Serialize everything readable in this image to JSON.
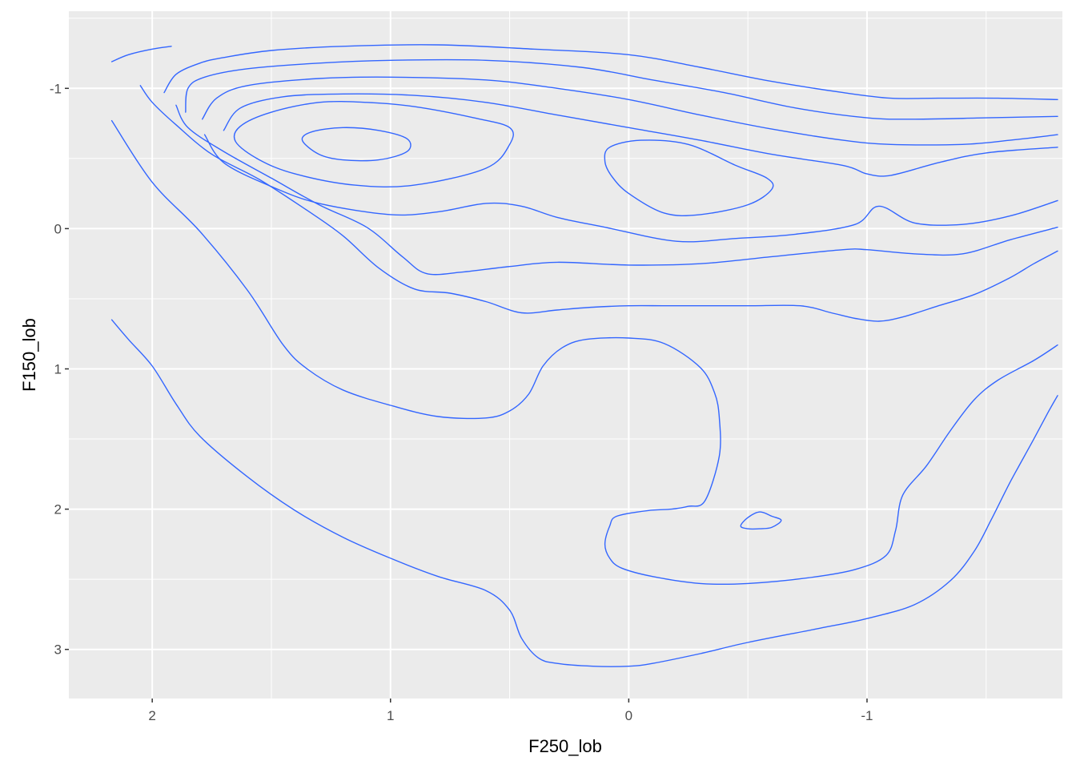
{
  "chart_data": {
    "type": "line",
    "subtype": "2d-density-contour",
    "title": "",
    "xlabel": "F250_lob",
    "ylabel": "F150_lob",
    "x_reversed": true,
    "y_reversed": true,
    "xlim": [
      2.35,
      -1.82
    ],
    "ylim": [
      -1.55,
      3.35
    ],
    "x_ticks": [
      2,
      1,
      0,
      -1
    ],
    "x_tick_labels": [
      "2",
      "1",
      "0",
      "-1"
    ],
    "y_ticks": [
      -1,
      0,
      1,
      2,
      3
    ],
    "y_tick_labels": [
      "-1",
      "0",
      "1",
      "2",
      "3"
    ],
    "grid": true,
    "legend": "none",
    "colors": {
      "panel_background": "#EBEBEB",
      "grid": "#FFFFFF",
      "contour": "#3366FF",
      "page_background": "#FFFFFF"
    },
    "series": [
      {
        "closed": false,
        "points": [
          [
            2.17,
            -1.19
          ],
          [
            2.1,
            -1.24
          ],
          [
            2.0,
            -1.28
          ],
          [
            1.92,
            -1.3
          ]
        ]
      },
      {
        "closed": false,
        "points": [
          [
            2.17,
            0.65
          ],
          [
            2.1,
            0.79
          ],
          [
            2.0,
            0.98
          ],
          [
            1.9,
            1.25
          ],
          [
            1.8,
            1.48
          ],
          [
            1.6,
            1.77
          ],
          [
            1.4,
            2.01
          ],
          [
            1.2,
            2.2
          ],
          [
            1.0,
            2.35
          ],
          [
            0.8,
            2.48
          ],
          [
            0.6,
            2.58
          ],
          [
            0.5,
            2.72
          ],
          [
            0.45,
            2.92
          ],
          [
            0.38,
            3.06
          ],
          [
            0.3,
            3.1
          ],
          [
            0.15,
            3.12
          ],
          [
            0.0,
            3.12
          ],
          [
            -0.1,
            3.1
          ],
          [
            -0.3,
            3.03
          ],
          [
            -0.5,
            2.95
          ],
          [
            -0.8,
            2.85
          ],
          [
            -1.0,
            2.78
          ],
          [
            -1.2,
            2.68
          ],
          [
            -1.35,
            2.51
          ],
          [
            -1.45,
            2.3
          ],
          [
            -1.52,
            2.08
          ],
          [
            -1.6,
            1.81
          ],
          [
            -1.7,
            1.5
          ],
          [
            -1.76,
            1.31
          ],
          [
            -1.8,
            1.19
          ]
        ]
      },
      {
        "closed": false,
        "points": [
          [
            2.17,
            -0.77
          ],
          [
            2.0,
            -0.33
          ],
          [
            1.8,
            0.02
          ],
          [
            1.6,
            0.44
          ],
          [
            1.45,
            0.83
          ],
          [
            1.35,
            1.0
          ],
          [
            1.2,
            1.15
          ],
          [
            1.0,
            1.26
          ],
          [
            0.8,
            1.34
          ],
          [
            0.6,
            1.35
          ],
          [
            0.5,
            1.3
          ],
          [
            0.42,
            1.18
          ],
          [
            0.36,
            0.98
          ],
          [
            0.28,
            0.85
          ],
          [
            0.18,
            0.79
          ],
          [
            0.0,
            0.78
          ],
          [
            -0.15,
            0.82
          ],
          [
            -0.3,
            0.99
          ],
          [
            -0.36,
            1.17
          ],
          [
            -0.38,
            1.35
          ],
          [
            -0.38,
            1.62
          ],
          [
            -0.32,
            1.94
          ],
          [
            -0.25,
            1.98
          ],
          [
            -0.18,
            2.0
          ],
          [
            -0.08,
            2.01
          ],
          [
            0.05,
            2.05
          ],
          [
            0.08,
            2.12
          ],
          [
            0.1,
            2.25
          ],
          [
            0.08,
            2.35
          ],
          [
            0.03,
            2.42
          ],
          [
            -0.1,
            2.48
          ],
          [
            -0.3,
            2.53
          ],
          [
            -0.5,
            2.53
          ],
          [
            -0.75,
            2.49
          ],
          [
            -0.95,
            2.43
          ],
          [
            -1.08,
            2.33
          ],
          [
            -1.12,
            2.15
          ],
          [
            -1.15,
            1.9
          ],
          [
            -1.25,
            1.69
          ],
          [
            -1.35,
            1.44
          ],
          [
            -1.45,
            1.22
          ],
          [
            -1.55,
            1.08
          ],
          [
            -1.7,
            0.94
          ],
          [
            -1.8,
            0.83
          ]
        ]
      },
      {
        "closed": false,
        "points": [
          [
            2.05,
            -1.02
          ],
          [
            2.0,
            -0.9
          ],
          [
            1.9,
            -0.74
          ],
          [
            1.75,
            -0.53
          ],
          [
            1.55,
            -0.35
          ],
          [
            1.35,
            -0.13
          ],
          [
            1.2,
            0.05
          ],
          [
            1.05,
            0.28
          ],
          [
            0.9,
            0.43
          ],
          [
            0.75,
            0.46
          ],
          [
            0.6,
            0.52
          ],
          [
            0.45,
            0.6
          ],
          [
            0.3,
            0.58
          ],
          [
            0.15,
            0.56
          ],
          [
            0.0,
            0.55
          ],
          [
            -0.15,
            0.55
          ],
          [
            -0.3,
            0.55
          ],
          [
            -0.5,
            0.55
          ],
          [
            -0.72,
            0.55
          ],
          [
            -0.85,
            0.6
          ],
          [
            -0.95,
            0.64
          ],
          [
            -1.05,
            0.66
          ],
          [
            -1.15,
            0.63
          ],
          [
            -1.3,
            0.55
          ],
          [
            -1.45,
            0.47
          ],
          [
            -1.6,
            0.35
          ],
          [
            -1.7,
            0.25
          ],
          [
            -1.8,
            0.16
          ]
        ]
      },
      {
        "closed": false,
        "points": [
          [
            1.95,
            -0.97
          ],
          [
            1.9,
            -1.1
          ],
          [
            1.8,
            -1.18
          ],
          [
            1.7,
            -1.22
          ],
          [
            1.5,
            -1.27
          ],
          [
            1.2,
            -1.3
          ],
          [
            0.8,
            -1.31
          ],
          [
            0.4,
            -1.28
          ],
          [
            0.0,
            -1.24
          ],
          [
            -0.3,
            -1.15
          ],
          [
            -0.6,
            -1.05
          ],
          [
            -0.9,
            -0.97
          ],
          [
            -1.1,
            -0.93
          ],
          [
            -1.3,
            -0.93
          ],
          [
            -1.55,
            -0.93
          ],
          [
            -1.8,
            -0.92
          ]
        ]
      },
      {
        "closed": false,
        "points": [
          [
            1.86,
            -0.83
          ],
          [
            1.85,
            -1.0
          ],
          [
            1.78,
            -1.08
          ],
          [
            1.6,
            -1.14
          ],
          [
            1.3,
            -1.18
          ],
          [
            1.0,
            -1.2
          ],
          [
            0.6,
            -1.2
          ],
          [
            0.2,
            -1.15
          ],
          [
            -0.1,
            -1.06
          ],
          [
            -0.4,
            -0.97
          ],
          [
            -0.7,
            -0.86
          ],
          [
            -1.0,
            -0.79
          ],
          [
            -1.2,
            -0.78
          ],
          [
            -1.5,
            -0.79
          ],
          [
            -1.8,
            -0.8
          ]
        ]
      },
      {
        "closed": false,
        "points": [
          [
            1.79,
            -0.78
          ],
          [
            1.73,
            -0.93
          ],
          [
            1.6,
            -1.02
          ],
          [
            1.3,
            -1.07
          ],
          [
            1.0,
            -1.08
          ],
          [
            0.6,
            -1.06
          ],
          [
            0.3,
            -1.0
          ],
          [
            0.0,
            -0.92
          ],
          [
            -0.3,
            -0.81
          ],
          [
            -0.6,
            -0.71
          ],
          [
            -0.9,
            -0.63
          ],
          [
            -1.1,
            -0.6
          ],
          [
            -1.4,
            -0.6
          ],
          [
            -1.6,
            -0.63
          ],
          [
            -1.8,
            -0.67
          ]
        ]
      },
      {
        "closed": false,
        "points": [
          [
            1.7,
            -0.7
          ],
          [
            1.63,
            -0.86
          ],
          [
            1.45,
            -0.94
          ],
          [
            1.2,
            -0.96
          ],
          [
            0.9,
            -0.95
          ],
          [
            0.6,
            -0.9
          ],
          [
            0.3,
            -0.81
          ],
          [
            0.0,
            -0.72
          ],
          [
            -0.3,
            -0.63
          ],
          [
            -0.6,
            -0.53
          ],
          [
            -0.9,
            -0.45
          ],
          [
            -1.0,
            -0.39
          ],
          [
            -1.1,
            -0.38
          ],
          [
            -1.3,
            -0.47
          ],
          [
            -1.5,
            -0.54
          ],
          [
            -1.8,
            -0.58
          ]
        ]
      },
      {
        "closed": false,
        "points": [
          [
            1.9,
            -0.88
          ],
          [
            1.85,
            -0.72
          ],
          [
            1.7,
            -0.55
          ],
          [
            1.5,
            -0.36
          ],
          [
            1.3,
            -0.17
          ],
          [
            1.1,
            -0.01
          ],
          [
            0.95,
            0.2
          ],
          [
            0.85,
            0.32
          ],
          [
            0.7,
            0.31
          ],
          [
            0.5,
            0.27
          ],
          [
            0.3,
            0.24
          ],
          [
            0.0,
            0.26
          ],
          [
            -0.3,
            0.25
          ],
          [
            -0.6,
            0.2
          ],
          [
            -0.9,
            0.15
          ],
          [
            -1.0,
            0.15
          ],
          [
            -1.2,
            0.18
          ],
          [
            -1.4,
            0.18
          ],
          [
            -1.6,
            0.08
          ],
          [
            -1.8,
            -0.01
          ]
        ]
      },
      {
        "closed": false,
        "points": [
          [
            1.78,
            -0.67
          ],
          [
            1.7,
            -0.47
          ],
          [
            1.5,
            -0.3
          ],
          [
            1.3,
            -0.18
          ],
          [
            1.0,
            -0.1
          ],
          [
            0.8,
            -0.12
          ],
          [
            0.6,
            -0.18
          ],
          [
            0.45,
            -0.16
          ],
          [
            0.3,
            -0.08
          ],
          [
            0.1,
            -0.01
          ],
          [
            -0.2,
            0.09
          ],
          [
            -0.45,
            0.07
          ],
          [
            -0.7,
            0.04
          ],
          [
            -0.95,
            -0.03
          ],
          [
            -1.05,
            -0.16
          ],
          [
            -1.2,
            -0.04
          ],
          [
            -1.4,
            -0.03
          ],
          [
            -1.6,
            -0.09
          ],
          [
            -1.8,
            -0.2
          ]
        ]
      },
      {
        "closed": true,
        "points": [
          [
            1.65,
            -0.62
          ],
          [
            1.55,
            -0.49
          ],
          [
            1.4,
            -0.39
          ],
          [
            1.15,
            -0.31
          ],
          [
            0.9,
            -0.31
          ],
          [
            0.6,
            -0.43
          ],
          [
            0.5,
            -0.6
          ],
          [
            0.5,
            -0.72
          ],
          [
            0.65,
            -0.79
          ],
          [
            0.9,
            -0.87
          ],
          [
            1.1,
            -0.9
          ],
          [
            1.3,
            -0.9
          ],
          [
            1.5,
            -0.83
          ],
          [
            1.63,
            -0.73
          ]
        ]
      },
      {
        "closed": true,
        "points": [
          [
            1.37,
            -0.63
          ],
          [
            1.3,
            -0.53
          ],
          [
            1.2,
            -0.49
          ],
          [
            1.05,
            -0.49
          ],
          [
            0.93,
            -0.55
          ],
          [
            0.93,
            -0.64
          ],
          [
            1.05,
            -0.7
          ],
          [
            1.2,
            -0.72
          ],
          [
            1.33,
            -0.69
          ]
        ]
      },
      {
        "closed": true,
        "points": [
          [
            0.1,
            -0.48
          ],
          [
            0.07,
            -0.37
          ],
          [
            0.0,
            -0.25
          ],
          [
            -0.15,
            -0.11
          ],
          [
            -0.3,
            -0.1
          ],
          [
            -0.5,
            -0.17
          ],
          [
            -0.6,
            -0.28
          ],
          [
            -0.58,
            -0.36
          ],
          [
            -0.45,
            -0.45
          ],
          [
            -0.25,
            -0.6
          ],
          [
            -0.05,
            -0.63
          ],
          [
            0.08,
            -0.58
          ]
        ]
      },
      {
        "closed": true,
        "points": [
          [
            -0.47,
            2.12
          ],
          [
            -0.5,
            2.06
          ],
          [
            -0.55,
            2.02
          ],
          [
            -0.6,
            2.05
          ],
          [
            -0.64,
            2.08
          ],
          [
            -0.6,
            2.13
          ],
          [
            -0.55,
            2.14
          ],
          [
            -0.5,
            2.14
          ]
        ]
      }
    ]
  }
}
